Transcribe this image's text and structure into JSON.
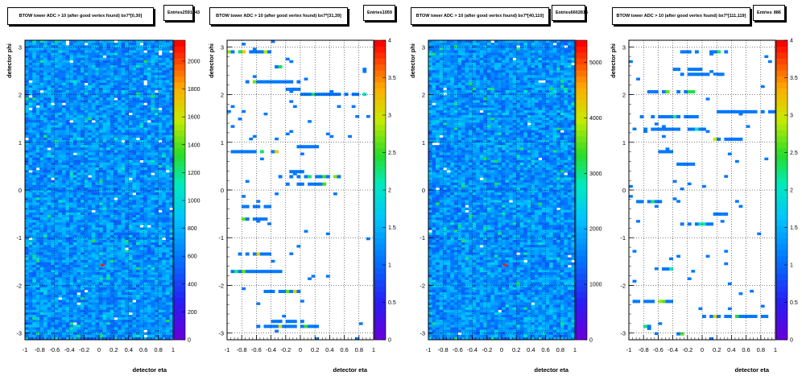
{
  "chart_data": [
    {
      "type": "heatmap",
      "title": "BTOW tower ADC > 10 (after good vertex found) bx7*[0,30]",
      "stats": {
        "label": "Entries",
        "value": "2591443"
      },
      "xlabel": "detector eta",
      "ylabel": "detector phi",
      "xlim": [
        -1,
        1
      ],
      "ylim": [
        -3.14,
        3.14
      ],
      "xticks": [
        "-1",
        "-0.8",
        "-0.6",
        "-0.4",
        "-0.2",
        "0",
        "0.2",
        "0.4",
        "0.6",
        "0.8",
        "1"
      ],
      "yticks": [
        "-3",
        "-2",
        "-1",
        "0",
        "1",
        "2",
        "3"
      ],
      "zlim": [
        0,
        2150
      ],
      "zticks": [
        "0",
        "200",
        "400",
        "600",
        "800",
        "1000",
        "1200",
        "1400",
        "1600",
        "1800",
        "2000"
      ],
      "grid": true,
      "pattern": "dense"
    },
    {
      "type": "heatmap",
      "title": "BTOW tower ADC > 10 (after good vertex found) bx7*[31,39]",
      "stats": {
        "label": "Entries",
        "value": "1059"
      },
      "xlabel": "detector eta",
      "ylabel": "detector phi",
      "xlim": [
        -1,
        1
      ],
      "ylim": [
        -3.14,
        3.14
      ],
      "xticks": [
        "-1",
        "-0.8",
        "-0.6",
        "-0.4",
        "-0.2",
        "0",
        "0.2",
        "0.4",
        "0.6",
        "0.8",
        "1"
      ],
      "yticks": [
        "-3",
        "-2",
        "-1",
        "0",
        "1",
        "2",
        "3"
      ],
      "zlim": [
        0,
        4
      ],
      "zticks": [
        "0",
        "0.5",
        "1",
        "1.5",
        "2",
        "2.5",
        "3",
        "3.5",
        "4"
      ],
      "grid": true,
      "pattern": "sparse"
    },
    {
      "type": "heatmap",
      "title": "BTOW tower ADC > 10 (after good vertex found) bx7*[40,110]",
      "stats": {
        "label": "Entries",
        "value": "6602815"
      },
      "xlabel": "detector eta",
      "ylabel": "detector phi",
      "xlim": [
        -1,
        1
      ],
      "ylim": [
        -3.14,
        3.14
      ],
      "xticks": [
        "-1",
        "-0.8",
        "-0.6",
        "-0.4",
        "-0.2",
        "0",
        "0.2",
        "0.4",
        "0.6",
        "0.8",
        "1"
      ],
      "yticks": [
        "-3",
        "-2",
        "-1",
        "0",
        "1",
        "2",
        "3"
      ],
      "zlim": [
        0,
        5400
      ],
      "zticks": [
        "0",
        "1000",
        "2000",
        "3000",
        "4000",
        "5000"
      ],
      "grid": true,
      "pattern": "dense"
    },
    {
      "type": "heatmap",
      "title": "BTOW tower ADC > 10 (after good vertex found) bx7*[111,119]",
      "stats": {
        "label": "Entries",
        "value": "886"
      },
      "xlabel": "detector eta",
      "ylabel": "detector phi",
      "xlim": [
        -1,
        1
      ],
      "ylim": [
        -3.14,
        3.14
      ],
      "xticks": [
        "-1",
        "-0.8",
        "-0.6",
        "-0.4",
        "-0.2",
        "0",
        "0.2",
        "0.4",
        "0.6",
        "0.8",
        "1"
      ],
      "yticks": [
        "-3",
        "-2",
        "-1",
        "0",
        "1",
        "2",
        "3"
      ],
      "zlim": [
        0,
        4
      ],
      "zticks": [
        "0",
        "0.5",
        "1",
        "1.5",
        "2",
        "2.5",
        "3",
        "3.5",
        "4"
      ],
      "grid": true,
      "pattern": "sparse"
    }
  ]
}
